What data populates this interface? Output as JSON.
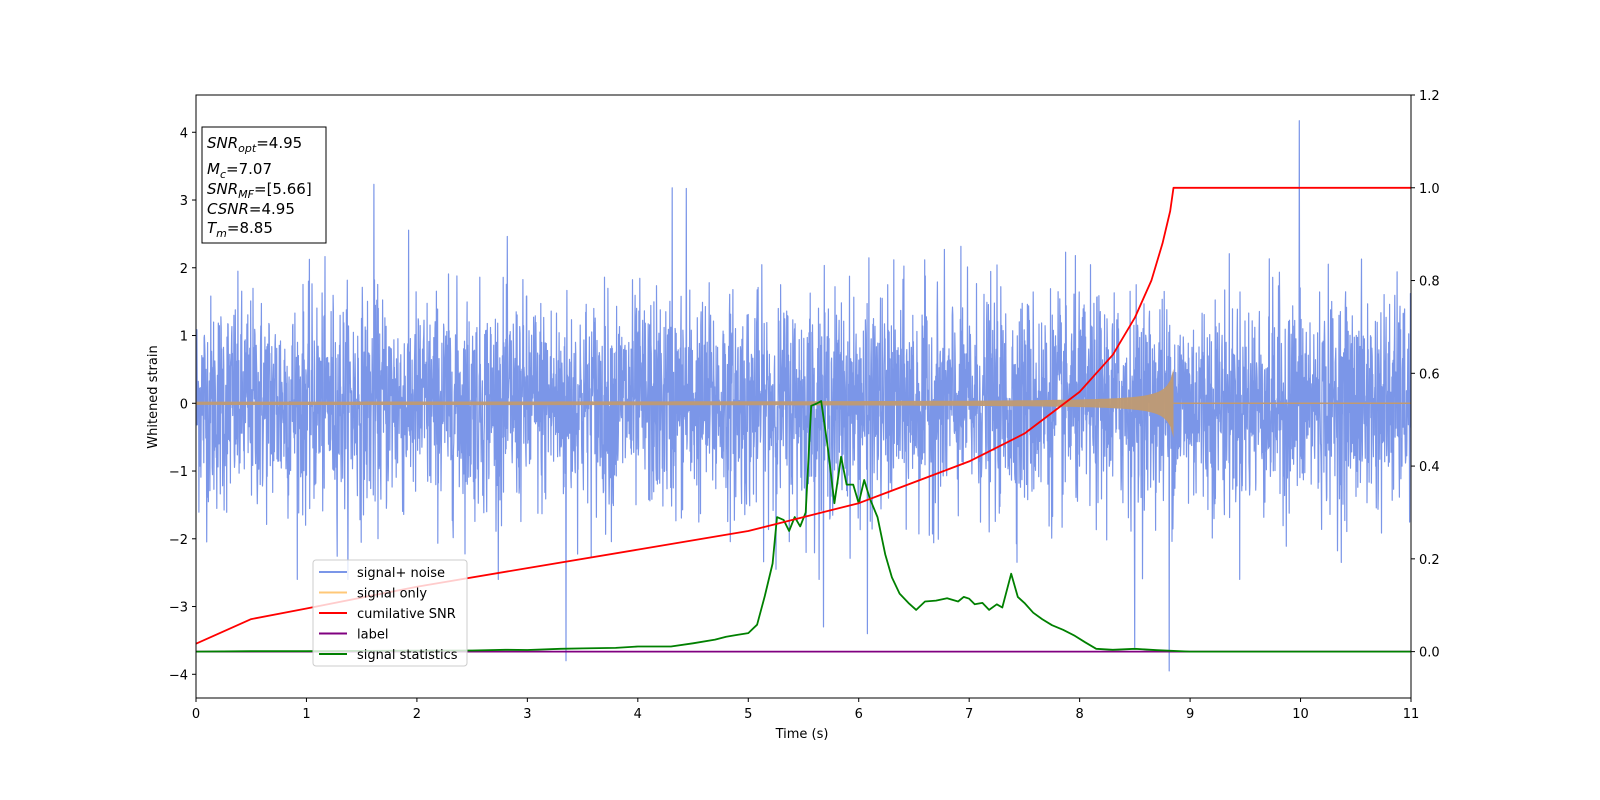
{
  "chart_data": {
    "type": "line",
    "xlabel": "Time (s)",
    "ylabel": "Whitened strain",
    "xlim": [
      0,
      11
    ],
    "ylim_left": [
      -4.35,
      4.55
    ],
    "ylim_right": [
      -0.1,
      1.2
    ],
    "xticks": [
      "0",
      "1",
      "2",
      "3",
      "4",
      "5",
      "6",
      "7",
      "8",
      "9",
      "10",
      "11"
    ],
    "yticks_left": [
      "−4",
      "−3",
      "−2",
      "−1",
      "0",
      "1",
      "2",
      "3",
      "4"
    ],
    "yticks_right": [
      "0.0",
      "0.2",
      "0.4",
      "0.6",
      "0.8",
      "1.0",
      "1.2"
    ],
    "grid": false,
    "legend": {
      "placement": "lower-left",
      "entries": [
        {
          "label": "signal+ noise",
          "color": "#7b96e8"
        },
        {
          "label": "signal only",
          "color": "#ffc878"
        },
        {
          "label": "cumilative SNR",
          "color": "#ff0000"
        },
        {
          "label": "label",
          "color": "#800080"
        },
        {
          "label": "signal statistics",
          "color": "#008000"
        }
      ]
    },
    "info_box": {
      "snr_opt": {
        "base": "SNR",
        "sub": "opt",
        "value": "=4.95"
      },
      "mc": {
        "base": "M",
        "sub": "c",
        "value": "=7.07"
      },
      "snr_mf": {
        "base": "SNR",
        "sub": "MF",
        "value": "=[5.66]"
      },
      "csnr": {
        "base": "CSNR",
        "value": "=4.95"
      },
      "tm": {
        "base": "T",
        "sub": "m",
        "value": "=8.85"
      }
    },
    "series": [
      {
        "name": "signal+ noise",
        "axis": "left",
        "color": "#7b96e8",
        "description": "white-noise band",
        "typical_range": [
          -1.6,
          1.6
        ],
        "peaks": [
          [
            1.61,
            3.23
          ],
          [
            4.31,
            3.18
          ],
          [
            4.44,
            3.17
          ],
          [
            9.99,
            4.17
          ],
          [
            3.35,
            -3.8
          ],
          [
            8.81,
            -3.95
          ],
          [
            6.08,
            -3.4
          ],
          [
            8.5,
            -3.6
          ],
          [
            5.68,
            -3.3
          ]
        ]
      },
      {
        "name": "signal only",
        "axis": "left",
        "color": "#ffc878",
        "description": "chirp growing in amplitude until merger at t=8.85",
        "merger_time": 8.85,
        "peak_amplitude": 0.55
      },
      {
        "name": "cumilative SNR",
        "axis": "right",
        "color": "#ff0000",
        "x": [
          0,
          0.5,
          1,
          2,
          3,
          4,
          5,
          6,
          7,
          7.5,
          8,
          8.3,
          8.5,
          8.65,
          8.75,
          8.82,
          8.85,
          11
        ],
        "y": [
          0.017,
          0.07,
          0.093,
          0.14,
          0.18,
          0.22,
          0.26,
          0.32,
          0.41,
          0.47,
          0.56,
          0.64,
          0.72,
          0.8,
          0.88,
          0.95,
          1.0,
          1.0
        ]
      },
      {
        "name": "label",
        "axis": "right",
        "color": "#800080",
        "x": [
          0,
          11
        ],
        "y": [
          0,
          0
        ]
      },
      {
        "name": "signal statistics",
        "axis": "right",
        "color": "#008000",
        "x": [
          0,
          0.5,
          1,
          1.5,
          2,
          2.5,
          2.8,
          3,
          3.3,
          3.5,
          3.8,
          4.0,
          4.3,
          4.5,
          4.7,
          4.8,
          4.9,
          5.0,
          5.08,
          5.15,
          5.22,
          5.26,
          5.32,
          5.37,
          5.42,
          5.47,
          5.52,
          5.57,
          5.62,
          5.66,
          5.72,
          5.78,
          5.84,
          5.89,
          5.95,
          6.0,
          6.05,
          6.1,
          6.17,
          6.24,
          6.3,
          6.37,
          6.45,
          6.52,
          6.6,
          6.7,
          6.8,
          6.9,
          6.95,
          7.0,
          7.05,
          7.12,
          7.18,
          7.25,
          7.3,
          7.38,
          7.44,
          7.5,
          7.58,
          7.66,
          7.75,
          7.85,
          7.95,
          8.05,
          8.15,
          8.3,
          8.5,
          8.7,
          9.0,
          9.5,
          10,
          10.5,
          11
        ],
        "y": [
          0,
          0.001,
          0.001,
          0.0015,
          0.002,
          0.0025,
          0.004,
          0.0035,
          0.006,
          0.007,
          0.008,
          0.011,
          0.011,
          0.018,
          0.026,
          0.032,
          0.036,
          0.04,
          0.058,
          0.12,
          0.19,
          0.29,
          0.284,
          0.26,
          0.29,
          0.27,
          0.3,
          0.53,
          0.535,
          0.54,
          0.44,
          0.32,
          0.42,
          0.36,
          0.36,
          0.32,
          0.37,
          0.33,
          0.29,
          0.21,
          0.16,
          0.125,
          0.105,
          0.09,
          0.108,
          0.11,
          0.115,
          0.108,
          0.118,
          0.114,
          0.102,
          0.105,
          0.09,
          0.102,
          0.095,
          0.168,
          0.118,
          0.105,
          0.084,
          0.07,
          0.057,
          0.047,
          0.035,
          0.02,
          0.006,
          0.004,
          0.006,
          0.003,
          0,
          0,
          0,
          0,
          0
        ]
      }
    ]
  }
}
